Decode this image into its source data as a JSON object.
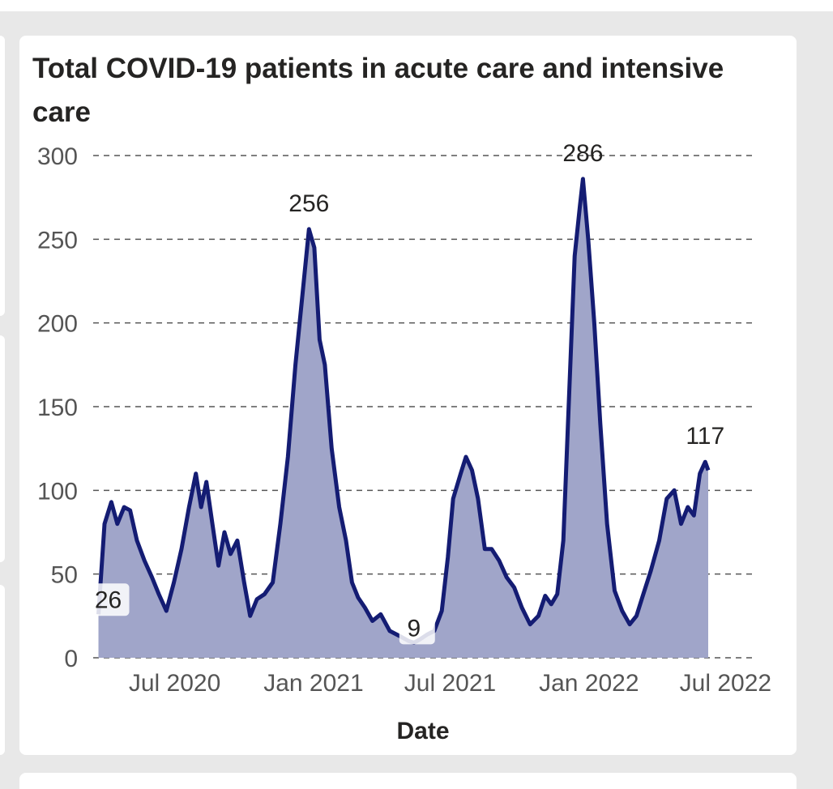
{
  "chart_data": {
    "type": "area",
    "title": "Total COVID-19 patients in acute care and intensive care",
    "xlabel": "Date",
    "ylabel": "",
    "ylim": [
      0,
      300
    ],
    "yticks": [
      "0",
      "50",
      "100",
      "150",
      "200",
      "250",
      "300"
    ],
    "xticks": [
      {
        "date": "2020-07-01",
        "label": "Jul 2020"
      },
      {
        "date": "2021-01-01",
        "label": "Jan 2021"
      },
      {
        "date": "2021-07-01",
        "label": "Jul 2021"
      },
      {
        "date": "2022-01-01",
        "label": "Jan 2022"
      },
      {
        "date": "2022-07-01",
        "label": "Jul 2022"
      }
    ],
    "xrange": [
      "2020-03-15",
      "2022-08-05"
    ],
    "grid": true,
    "colors": {
      "line": "#141c73",
      "fill": "#a0a5c9",
      "grid": "#555555"
    },
    "series": [
      {
        "points": [
          [
            "2020-03-22",
            26
          ],
          [
            "2020-03-30",
            80
          ],
          [
            "2020-04-08",
            93
          ],
          [
            "2020-04-16",
            80
          ],
          [
            "2020-04-25",
            90
          ],
          [
            "2020-05-03",
            88
          ],
          [
            "2020-05-12",
            70
          ],
          [
            "2020-05-22",
            58
          ],
          [
            "2020-06-01",
            48
          ],
          [
            "2020-06-10",
            38
          ],
          [
            "2020-06-20",
            28
          ],
          [
            "2020-06-30",
            45
          ],
          [
            "2020-07-10",
            65
          ],
          [
            "2020-07-20",
            90
          ],
          [
            "2020-07-29",
            110
          ],
          [
            "2020-08-05",
            90
          ],
          [
            "2020-08-12",
            105
          ],
          [
            "2020-08-20",
            80
          ],
          [
            "2020-08-28",
            55
          ],
          [
            "2020-09-05",
            75
          ],
          [
            "2020-09-13",
            62
          ],
          [
            "2020-09-22",
            70
          ],
          [
            "2020-10-01",
            45
          ],
          [
            "2020-10-09",
            25
          ],
          [
            "2020-10-18",
            35
          ],
          [
            "2020-10-28",
            38
          ],
          [
            "2020-11-08",
            45
          ],
          [
            "2020-11-18",
            80
          ],
          [
            "2020-11-28",
            120
          ],
          [
            "2020-12-08",
            175
          ],
          [
            "2020-12-18",
            220
          ],
          [
            "2020-12-26",
            256
          ],
          [
            "2021-01-02",
            245
          ],
          [
            "2021-01-09",
            190
          ],
          [
            "2021-01-16",
            175
          ],
          [
            "2021-01-25",
            125
          ],
          [
            "2021-02-04",
            90
          ],
          [
            "2021-02-13",
            70
          ],
          [
            "2021-02-21",
            45
          ],
          [
            "2021-03-01",
            36
          ],
          [
            "2021-03-10",
            30
          ],
          [
            "2021-03-20",
            22
          ],
          [
            "2021-03-31",
            26
          ],
          [
            "2021-04-12",
            16
          ],
          [
            "2021-04-25",
            13
          ],
          [
            "2021-05-07",
            10
          ],
          [
            "2021-05-14",
            9
          ],
          [
            "2021-05-22",
            11
          ],
          [
            "2021-06-01",
            14
          ],
          [
            "2021-06-10",
            16
          ],
          [
            "2021-06-20",
            28
          ],
          [
            "2021-06-28",
            60
          ],
          [
            "2021-07-05",
            95
          ],
          [
            "2021-07-15",
            110
          ],
          [
            "2021-07-22",
            120
          ],
          [
            "2021-07-30",
            112
          ],
          [
            "2021-08-07",
            95
          ],
          [
            "2021-08-16",
            65
          ],
          [
            "2021-08-25",
            65
          ],
          [
            "2021-09-04",
            58
          ],
          [
            "2021-09-14",
            48
          ],
          [
            "2021-09-24",
            42
          ],
          [
            "2021-10-04",
            30
          ],
          [
            "2021-10-15",
            20
          ],
          [
            "2021-10-26",
            25
          ],
          [
            "2021-11-04",
            37
          ],
          [
            "2021-11-12",
            32
          ],
          [
            "2021-11-20",
            38
          ],
          [
            "2021-11-28",
            70
          ],
          [
            "2021-12-06",
            160
          ],
          [
            "2021-12-13",
            240
          ],
          [
            "2021-12-20",
            270
          ],
          [
            "2021-12-24",
            286
          ],
          [
            "2021-12-31",
            250
          ],
          [
            "2022-01-08",
            200
          ],
          [
            "2022-01-16",
            140
          ],
          [
            "2022-01-25",
            80
          ],
          [
            "2022-02-04",
            40
          ],
          [
            "2022-02-14",
            28
          ],
          [
            "2022-02-24",
            20
          ],
          [
            "2022-03-05",
            25
          ],
          [
            "2022-03-14",
            38
          ],
          [
            "2022-03-24",
            52
          ],
          [
            "2022-04-04",
            70
          ],
          [
            "2022-04-14",
            95
          ],
          [
            "2022-04-24",
            100
          ],
          [
            "2022-05-03",
            80
          ],
          [
            "2022-05-12",
            90
          ],
          [
            "2022-05-20",
            85
          ],
          [
            "2022-05-28",
            110
          ],
          [
            "2022-06-04",
            117
          ],
          [
            "2022-06-08",
            112
          ]
        ]
      }
    ],
    "annotations": [
      {
        "date": "2020-03-22",
        "value": 26,
        "label": "26"
      },
      {
        "date": "2020-12-26",
        "value": 256,
        "label": "256"
      },
      {
        "date": "2021-05-14",
        "value": 9,
        "label": "9"
      },
      {
        "date": "2021-12-24",
        "value": 286,
        "label": "286"
      },
      {
        "date": "2022-06-04",
        "value": 117,
        "label": "117"
      }
    ]
  }
}
